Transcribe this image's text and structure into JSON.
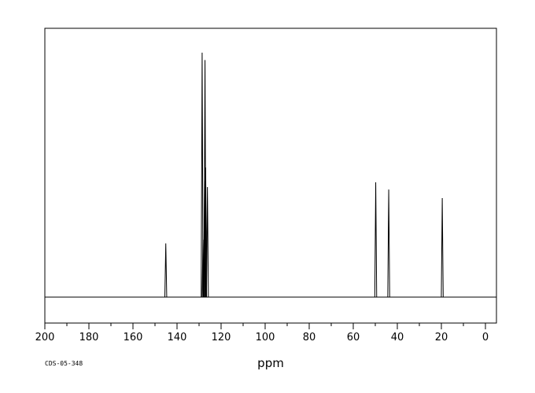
{
  "chart_data": {
    "type": "line",
    "title": "",
    "xlabel": "ppm",
    "ylabel": "",
    "sample_code": "CDS-05-348",
    "x_range": [
      200,
      -5
    ],
    "x_axis_reversed": true,
    "y_range": [
      0,
      1.1
    ],
    "major_ticks": [
      200,
      180,
      160,
      140,
      120,
      100,
      80,
      60,
      40,
      20,
      0
    ],
    "tick_labels": [
      "200",
      "180",
      "160",
      "140",
      "120",
      "100",
      "80",
      "60",
      "40",
      "20",
      "0"
    ],
    "minor_tick_step": 10,
    "grid": false,
    "legend": "none",
    "peaks": [
      {
        "ppm": 145.1,
        "intensity": 0.22
      },
      {
        "ppm": 128.6,
        "intensity": 1.0
      },
      {
        "ppm": 128.2,
        "intensity": 0.235
      },
      {
        "ppm": 127.5,
        "intensity": 0.475
      },
      {
        "ppm": 127.3,
        "intensity": 0.97
      },
      {
        "ppm": 127.0,
        "intensity": 0.53
      },
      {
        "ppm": 126.2,
        "intensity": 0.45
      },
      {
        "ppm": 49.8,
        "intensity": 0.47
      },
      {
        "ppm": 43.9,
        "intensity": 0.44
      },
      {
        "ppm": 19.6,
        "intensity": 0.405
      }
    ],
    "line_color": "#000000"
  }
}
